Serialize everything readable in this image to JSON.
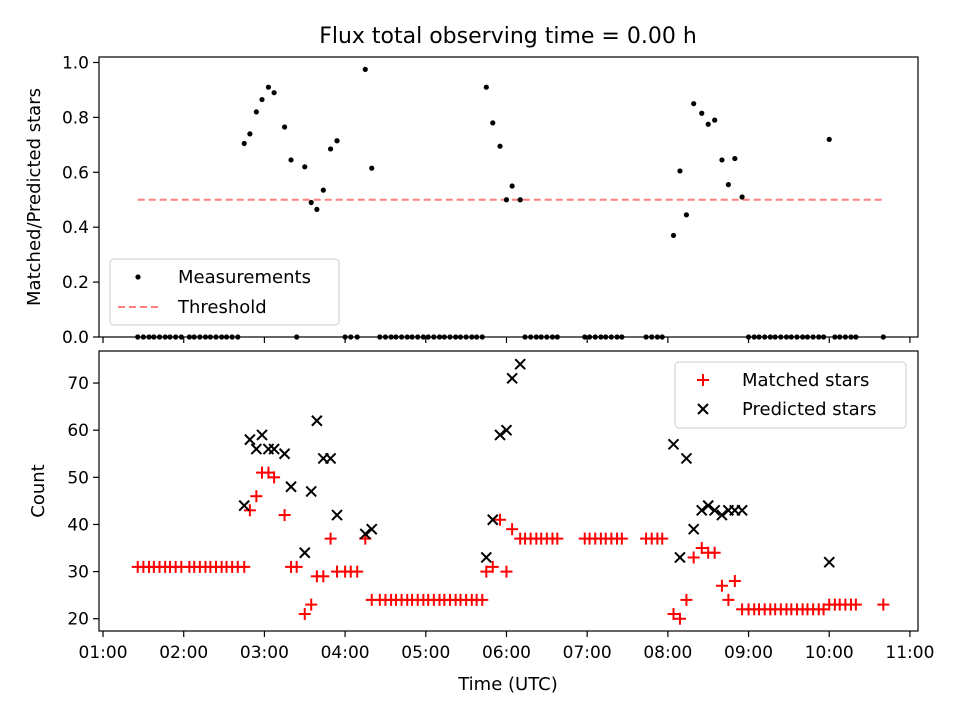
{
  "chart_data": [
    {
      "type": "scatter",
      "title": "Flux total observing time = 0.00 h",
      "xlabel": "",
      "ylabel": "Matched/Predicted stars",
      "xlim": [
        0.95,
        11.1
      ],
      "ylim": [
        0,
        1.02
      ],
      "x_ticks": [
        1,
        2,
        3,
        4,
        5,
        6,
        7,
        8,
        9,
        10,
        11
      ],
      "y_ticks": [
        0.0,
        0.2,
        0.4,
        0.6,
        0.8,
        1.0
      ],
      "y_tick_labels": [
        "0.0",
        "0.2",
        "0.4",
        "0.6",
        "0.8",
        "1.0"
      ],
      "legend_position": "lower-left",
      "legend": [
        "Measurements",
        "Threshold"
      ],
      "threshold": {
        "name": "Threshold",
        "y": 0.5,
        "x_start": 1.43,
        "x_end": 10.67,
        "color": "#ff7f7f"
      },
      "series": [
        {
          "name": "Measurements",
          "color": "#000000",
          "points": [
            [
              1.43,
              0
            ],
            [
              1.5,
              0
            ],
            [
              1.57,
              0
            ],
            [
              1.63,
              0
            ],
            [
              1.7,
              0
            ],
            [
              1.77,
              0
            ],
            [
              1.83,
              0
            ],
            [
              1.9,
              0
            ],
            [
              1.97,
              0
            ],
            [
              2.07,
              0
            ],
            [
              2.13,
              0
            ],
            [
              2.2,
              0
            ],
            [
              2.27,
              0
            ],
            [
              2.33,
              0
            ],
            [
              2.4,
              0
            ],
            [
              2.47,
              0
            ],
            [
              2.53,
              0
            ],
            [
              2.6,
              0
            ],
            [
              2.67,
              0
            ],
            [
              2.75,
              0.705
            ],
            [
              2.82,
              0.74
            ],
            [
              2.9,
              0.82
            ],
            [
              2.97,
              0.865
            ],
            [
              3.05,
              0.91
            ],
            [
              3.12,
              0.89
            ],
            [
              3.25,
              0.765
            ],
            [
              3.33,
              0.645
            ],
            [
              3.4,
              0
            ],
            [
              3.5,
              0.62
            ],
            [
              3.58,
              0.49
            ],
            [
              3.65,
              0.465
            ],
            [
              3.73,
              0.535
            ],
            [
              3.82,
              0.685
            ],
            [
              3.9,
              0.715
            ],
            [
              4.0,
              0
            ],
            [
              4.07,
              0
            ],
            [
              4.15,
              0
            ],
            [
              4.25,
              0.975
            ],
            [
              4.33,
              0.615
            ],
            [
              4.43,
              0
            ],
            [
              4.5,
              0
            ],
            [
              4.57,
              0
            ],
            [
              4.63,
              0
            ],
            [
              4.7,
              0
            ],
            [
              4.77,
              0
            ],
            [
              4.83,
              0
            ],
            [
              4.9,
              0
            ],
            [
              4.97,
              0
            ],
            [
              5.03,
              0
            ],
            [
              5.1,
              0
            ],
            [
              5.17,
              0
            ],
            [
              5.23,
              0
            ],
            [
              5.3,
              0
            ],
            [
              5.37,
              0
            ],
            [
              5.43,
              0
            ],
            [
              5.5,
              0
            ],
            [
              5.57,
              0
            ],
            [
              5.63,
              0
            ],
            [
              5.7,
              0
            ],
            [
              5.75,
              0.91
            ],
            [
              5.83,
              0.78
            ],
            [
              5.92,
              0.695
            ],
            [
              6.0,
              0.5
            ],
            [
              6.07,
              0.55
            ],
            [
              6.17,
              0.5
            ],
            [
              6.23,
              0
            ],
            [
              6.3,
              0
            ],
            [
              6.37,
              0
            ],
            [
              6.43,
              0
            ],
            [
              6.5,
              0
            ],
            [
              6.57,
              0
            ],
            [
              6.63,
              0
            ],
            [
              6.97,
              0
            ],
            [
              7.03,
              0
            ],
            [
              7.1,
              0
            ],
            [
              7.17,
              0
            ],
            [
              7.23,
              0
            ],
            [
              7.3,
              0
            ],
            [
              7.37,
              0
            ],
            [
              7.43,
              0
            ],
            [
              7.73,
              0
            ],
            [
              7.8,
              0
            ],
            [
              7.87,
              0
            ],
            [
              7.93,
              0
            ],
            [
              8.07,
              0.37
            ],
            [
              8.15,
              0.605
            ],
            [
              8.23,
              0.445
            ],
            [
              8.32,
              0.85
            ],
            [
              8.42,
              0.815
            ],
            [
              8.5,
              0.775
            ],
            [
              8.58,
              0.79
            ],
            [
              8.67,
              0.645
            ],
            [
              8.75,
              0.555
            ],
            [
              8.83,
              0.65
            ],
            [
              8.92,
              0.51
            ],
            [
              9.0,
              0
            ],
            [
              9.07,
              0
            ],
            [
              9.13,
              0
            ],
            [
              9.2,
              0
            ],
            [
              9.27,
              0
            ],
            [
              9.33,
              0
            ],
            [
              9.4,
              0
            ],
            [
              9.47,
              0
            ],
            [
              9.53,
              0
            ],
            [
              9.6,
              0
            ],
            [
              9.67,
              0
            ],
            [
              9.73,
              0
            ],
            [
              9.8,
              0
            ],
            [
              9.87,
              0
            ],
            [
              9.93,
              0
            ],
            [
              10.0,
              0.72
            ],
            [
              10.07,
              0
            ],
            [
              10.13,
              0
            ],
            [
              10.2,
              0
            ],
            [
              10.27,
              0
            ],
            [
              10.33,
              0
            ],
            [
              10.67,
              0
            ]
          ]
        }
      ]
    },
    {
      "type": "scatter",
      "title": "",
      "xlabel": "Time (UTC)",
      "ylabel": "Count",
      "xlim": [
        0.95,
        11.1
      ],
      "ylim": [
        17.4,
        76.8
      ],
      "x_ticks": [
        1,
        2,
        3,
        4,
        5,
        6,
        7,
        8,
        9,
        10,
        11
      ],
      "x_tick_labels": [
        "01:00",
        "02:00",
        "03:00",
        "04:00",
        "05:00",
        "06:00",
        "07:00",
        "08:00",
        "09:00",
        "10:00",
        "11:00"
      ],
      "y_ticks": [
        20,
        30,
        40,
        50,
        60,
        70
      ],
      "y_tick_labels": [
        "20",
        "30",
        "40",
        "50",
        "60",
        "70"
      ],
      "legend_position": "top-right",
      "legend": [
        "Matched stars",
        "Predicted stars"
      ],
      "series": [
        {
          "name": "Matched stars",
          "marker": "plus",
          "color": "#ff0000",
          "points": [
            [
              1.43,
              31
            ],
            [
              1.5,
              31
            ],
            [
              1.57,
              31
            ],
            [
              1.63,
              31
            ],
            [
              1.7,
              31
            ],
            [
              1.77,
              31
            ],
            [
              1.83,
              31
            ],
            [
              1.9,
              31
            ],
            [
              1.97,
              31
            ],
            [
              2.07,
              31
            ],
            [
              2.13,
              31
            ],
            [
              2.2,
              31
            ],
            [
              2.27,
              31
            ],
            [
              2.33,
              31
            ],
            [
              2.4,
              31
            ],
            [
              2.47,
              31
            ],
            [
              2.53,
              31
            ],
            [
              2.6,
              31
            ],
            [
              2.67,
              31
            ],
            [
              2.75,
              31
            ],
            [
              2.82,
              43
            ],
            [
              2.9,
              46
            ],
            [
              2.97,
              51
            ],
            [
              3.05,
              51
            ],
            [
              3.12,
              50
            ],
            [
              3.25,
              42
            ],
            [
              3.33,
              31
            ],
            [
              3.4,
              31
            ],
            [
              3.5,
              21
            ],
            [
              3.58,
              23
            ],
            [
              3.65,
              29
            ],
            [
              3.73,
              29
            ],
            [
              3.82,
              37
            ],
            [
              3.9,
              30
            ],
            [
              4.0,
              30
            ],
            [
              4.07,
              30
            ],
            [
              4.15,
              30
            ],
            [
              4.25,
              37
            ],
            [
              4.33,
              24
            ],
            [
              4.43,
              24
            ],
            [
              4.5,
              24
            ],
            [
              4.57,
              24
            ],
            [
              4.63,
              24
            ],
            [
              4.7,
              24
            ],
            [
              4.77,
              24
            ],
            [
              4.83,
              24
            ],
            [
              4.9,
              24
            ],
            [
              4.97,
              24
            ],
            [
              5.03,
              24
            ],
            [
              5.1,
              24
            ],
            [
              5.17,
              24
            ],
            [
              5.23,
              24
            ],
            [
              5.3,
              24
            ],
            [
              5.37,
              24
            ],
            [
              5.43,
              24
            ],
            [
              5.5,
              24
            ],
            [
              5.57,
              24
            ],
            [
              5.63,
              24
            ],
            [
              5.7,
              24
            ],
            [
              5.75,
              30
            ],
            [
              5.83,
              31
            ],
            [
              5.92,
              41
            ],
            [
              6.0,
              30
            ],
            [
              6.07,
              39
            ],
            [
              6.17,
              37
            ],
            [
              6.23,
              37
            ],
            [
              6.3,
              37
            ],
            [
              6.37,
              37
            ],
            [
              6.43,
              37
            ],
            [
              6.5,
              37
            ],
            [
              6.57,
              37
            ],
            [
              6.63,
              37
            ],
            [
              6.97,
              37
            ],
            [
              7.03,
              37
            ],
            [
              7.1,
              37
            ],
            [
              7.17,
              37
            ],
            [
              7.23,
              37
            ],
            [
              7.3,
              37
            ],
            [
              7.37,
              37
            ],
            [
              7.43,
              37
            ],
            [
              7.73,
              37
            ],
            [
              7.8,
              37
            ],
            [
              7.87,
              37
            ],
            [
              7.93,
              37
            ],
            [
              8.07,
              21
            ],
            [
              8.15,
              20
            ],
            [
              8.23,
              24
            ],
            [
              8.32,
              33
            ],
            [
              8.42,
              35
            ],
            [
              8.5,
              34
            ],
            [
              8.58,
              34
            ],
            [
              8.67,
              27
            ],
            [
              8.75,
              24
            ],
            [
              8.83,
              28
            ],
            [
              8.92,
              22
            ],
            [
              9.0,
              22
            ],
            [
              9.07,
              22
            ],
            [
              9.13,
              22
            ],
            [
              9.2,
              22
            ],
            [
              9.27,
              22
            ],
            [
              9.33,
              22
            ],
            [
              9.4,
              22
            ],
            [
              9.47,
              22
            ],
            [
              9.53,
              22
            ],
            [
              9.6,
              22
            ],
            [
              9.67,
              22
            ],
            [
              9.73,
              22
            ],
            [
              9.8,
              22
            ],
            [
              9.87,
              22
            ],
            [
              9.93,
              22
            ],
            [
              10.0,
              23
            ],
            [
              10.07,
              23
            ],
            [
              10.13,
              23
            ],
            [
              10.2,
              23
            ],
            [
              10.27,
              23
            ],
            [
              10.33,
              23
            ],
            [
              10.67,
              23
            ]
          ]
        },
        {
          "name": "Predicted stars",
          "marker": "x",
          "color": "#000000",
          "points": [
            [
              2.75,
              44
            ],
            [
              2.82,
              58
            ],
            [
              2.9,
              56
            ],
            [
              2.97,
              59
            ],
            [
              3.05,
              56
            ],
            [
              3.12,
              56
            ],
            [
              3.25,
              55
            ],
            [
              3.33,
              48
            ],
            [
              3.5,
              34
            ],
            [
              3.58,
              47
            ],
            [
              3.65,
              62
            ],
            [
              3.73,
              54
            ],
            [
              3.82,
              54
            ],
            [
              3.9,
              42
            ],
            [
              4.25,
              38
            ],
            [
              4.33,
              39
            ],
            [
              5.75,
              33
            ],
            [
              5.83,
              41
            ],
            [
              5.92,
              59
            ],
            [
              6.0,
              60
            ],
            [
              6.07,
              71
            ],
            [
              6.17,
              74
            ],
            [
              8.07,
              57
            ],
            [
              8.15,
              33
            ],
            [
              8.23,
              54
            ],
            [
              8.32,
              39
            ],
            [
              8.42,
              43
            ],
            [
              8.5,
              44
            ],
            [
              8.58,
              43
            ],
            [
              8.67,
              42
            ],
            [
              8.75,
              43
            ],
            [
              8.83,
              43
            ],
            [
              8.92,
              43
            ],
            [
              10.0,
              32
            ]
          ]
        }
      ]
    }
  ]
}
